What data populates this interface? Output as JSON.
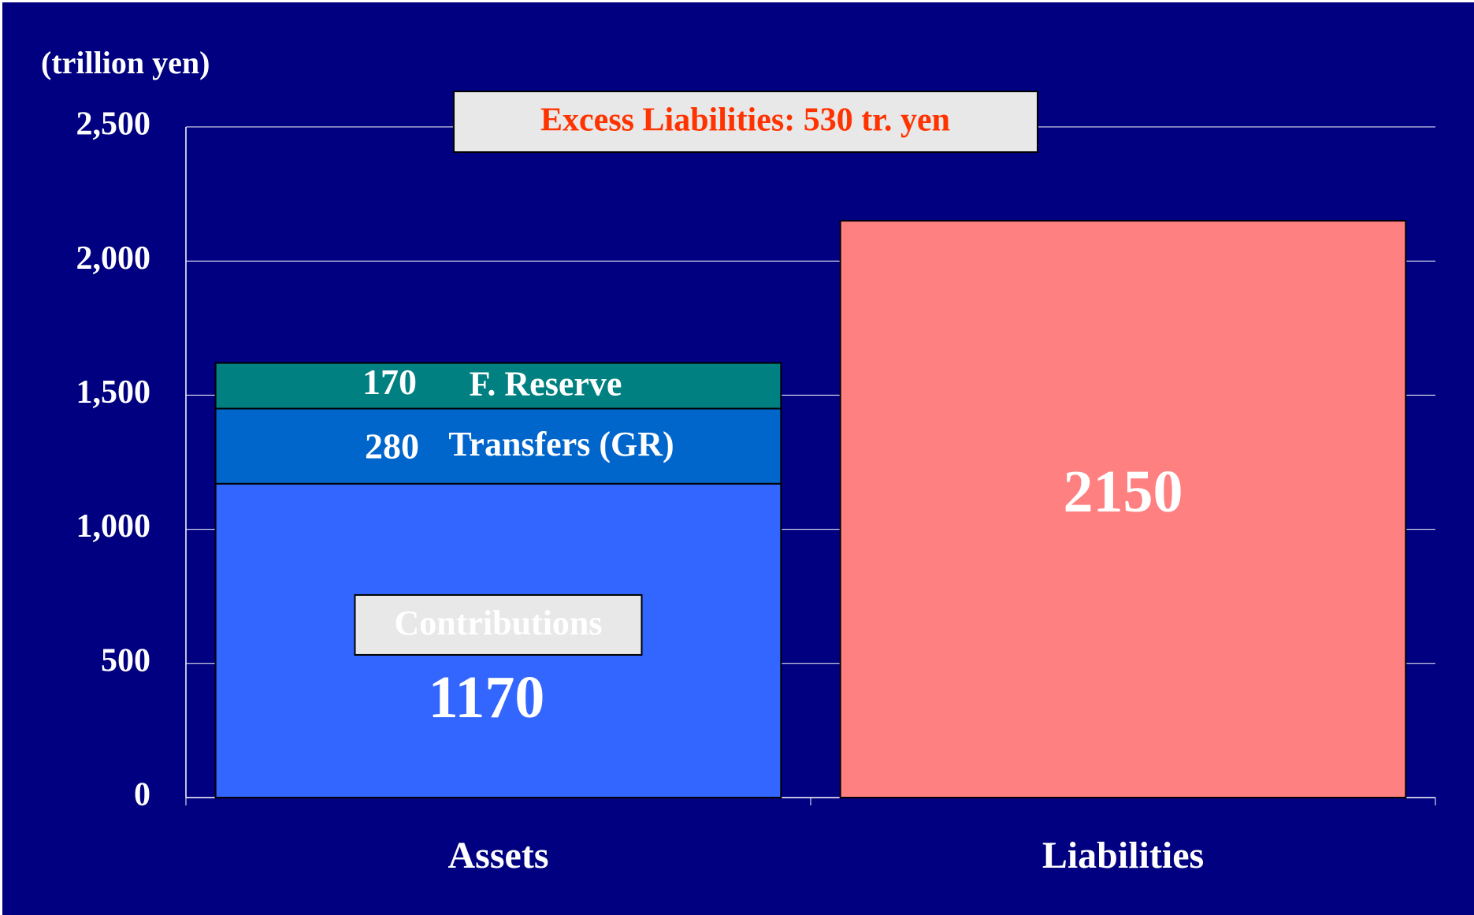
{
  "chart_data": {
    "type": "bar",
    "stacked": true,
    "y_unit_label": "(trillion yen)",
    "annotation": "Excess Liabilities: 530 tr. yen",
    "categories": [
      "Assets",
      "Liabilities"
    ],
    "series": [
      {
        "name": "Contributions",
        "color": "#3366ff",
        "values": [
          1170,
          null
        ]
      },
      {
        "name": "Transfers (GR)",
        "color": "#0066cc",
        "values": [
          280,
          null
        ]
      },
      {
        "name": "F. Reserve",
        "color": "#008080",
        "values": [
          170,
          null
        ]
      },
      {
        "color": "#ff8080",
        "values": [
          null,
          2150
        ]
      }
    ],
    "ylim": [
      0,
      2500
    ],
    "yticks": [
      0,
      500,
      {
        "value": 1000,
        "label": "1,000"
      },
      {
        "value": 1500,
        "label": "1,500"
      },
      {
        "value": 2000,
        "label": "2,000"
      },
      {
        "value": 2500,
        "label": "2,500"
      }
    ],
    "grid": true,
    "background": "#000080"
  }
}
